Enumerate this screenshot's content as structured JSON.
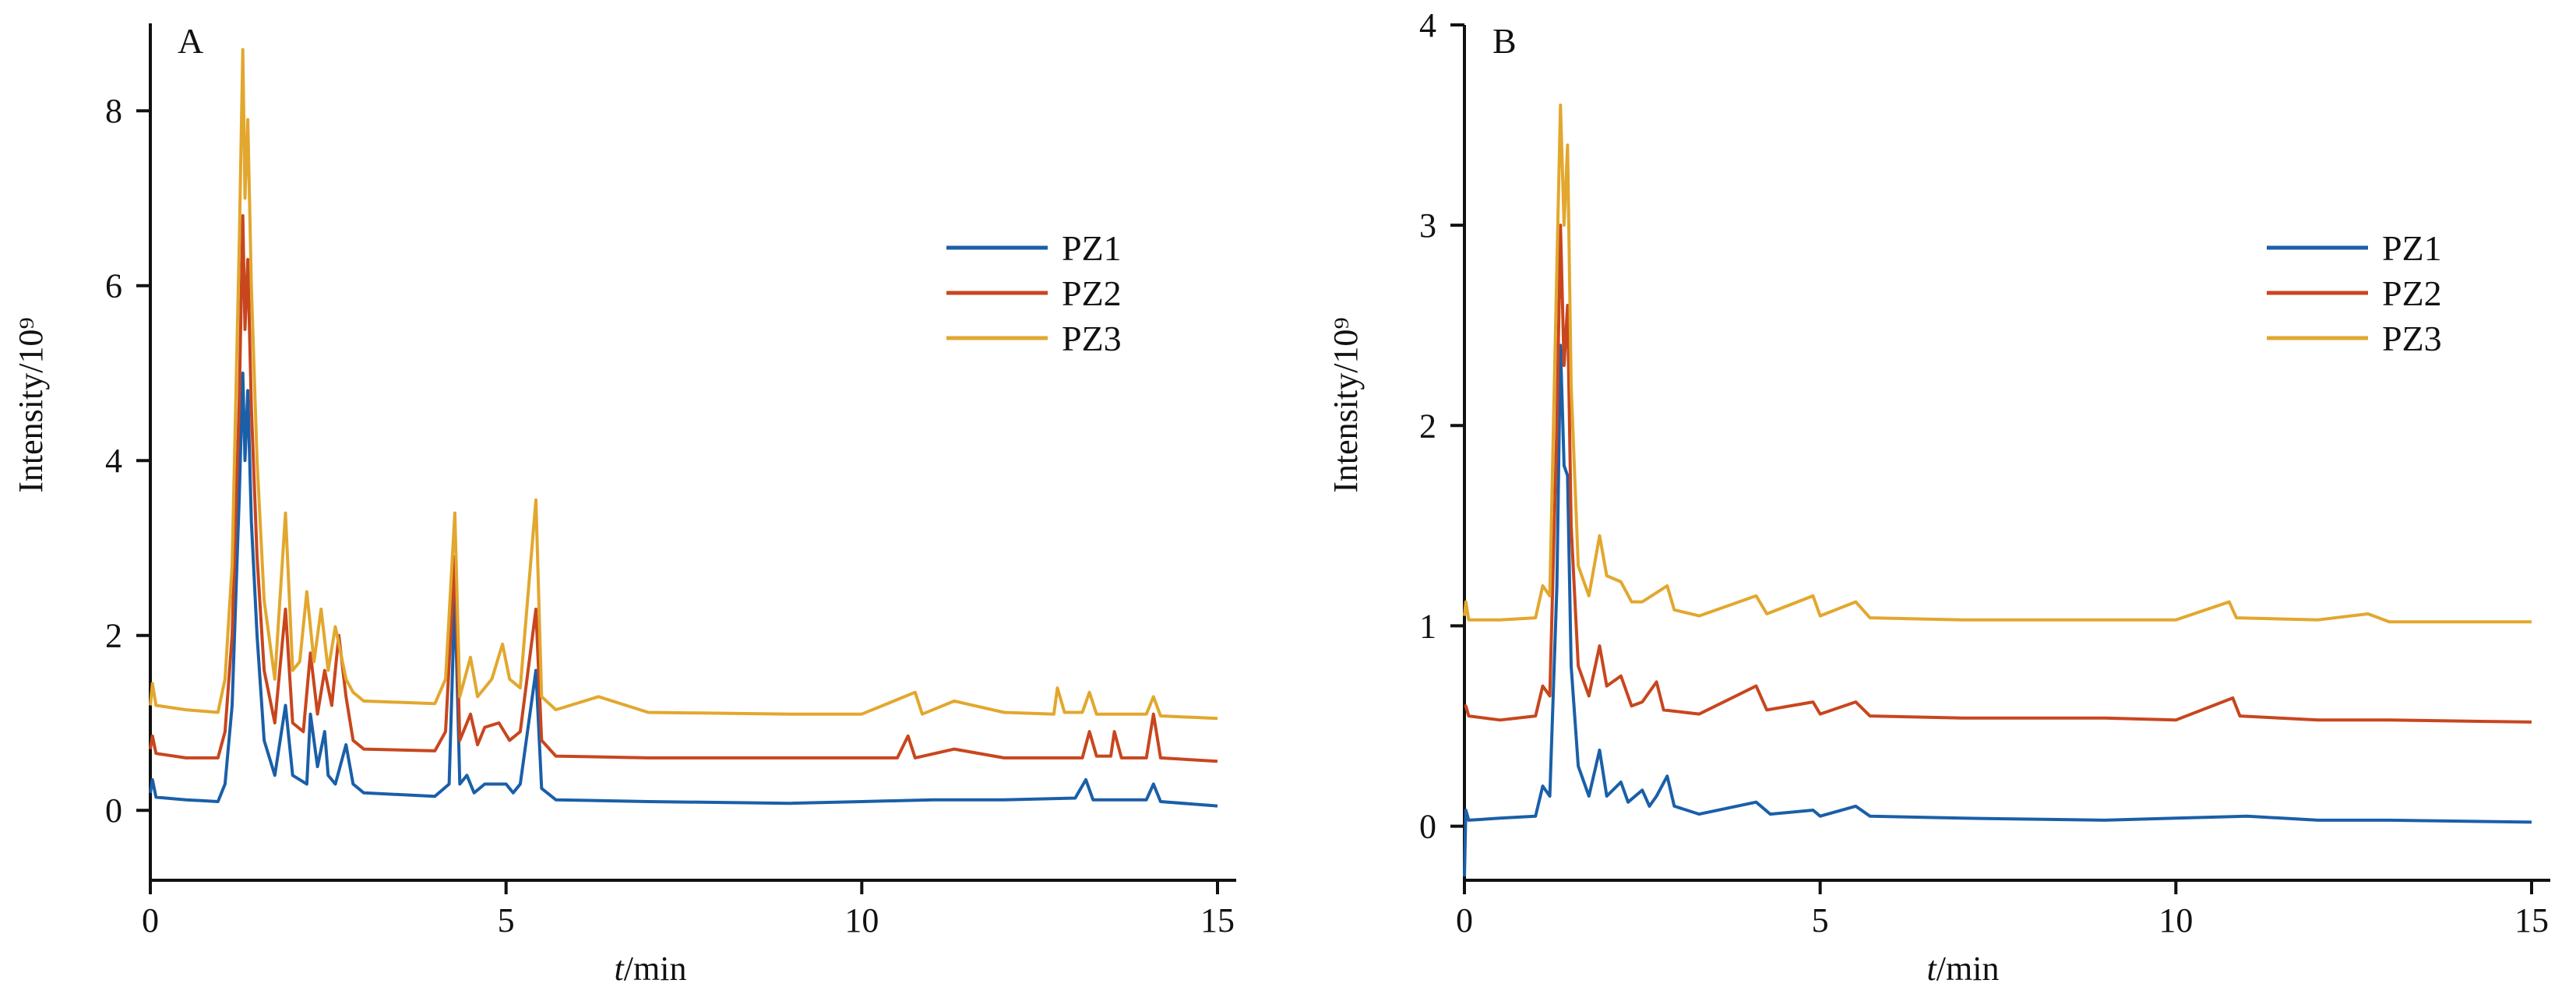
{
  "chart_data": [
    {
      "type": "line",
      "panel_label": "A",
      "xlabel_italic": "t",
      "xlabel_rest": "/min",
      "ylabel": "Intensity/10⁹",
      "xlim": [
        0,
        15
      ],
      "ylim": [
        -0.8,
        9.0
      ],
      "xticks": [
        0,
        5,
        10,
        15
      ],
      "yticks": [
        0,
        2,
        4,
        6,
        8
      ],
      "legend_position": "upper-right",
      "series": [
        {
          "name": "PZ1",
          "color": "#1a5fa8",
          "points": [
            [
              0,
              0.2
            ],
            [
              0.03,
              0.35
            ],
            [
              0.08,
              0.15
            ],
            [
              0.5,
              0.12
            ],
            [
              0.95,
              0.1
            ],
            [
              1.05,
              0.3
            ],
            [
              1.15,
              1.2
            ],
            [
              1.25,
              3.6
            ],
            [
              1.3,
              5.0
            ],
            [
              1.33,
              4.0
            ],
            [
              1.37,
              4.8
            ],
            [
              1.42,
              3.3
            ],
            [
              1.5,
              2.0
            ],
            [
              1.6,
              0.8
            ],
            [
              1.75,
              0.4
            ],
            [
              1.9,
              1.2
            ],
            [
              2.0,
              0.4
            ],
            [
              2.2,
              0.3
            ],
            [
              2.25,
              1.1
            ],
            [
              2.35,
              0.5
            ],
            [
              2.45,
              0.9
            ],
            [
              2.5,
              0.4
            ],
            [
              2.6,
              0.3
            ],
            [
              2.75,
              0.75
            ],
            [
              2.85,
              0.3
            ],
            [
              3.0,
              0.2
            ],
            [
              4.0,
              0.16
            ],
            [
              4.2,
              0.3
            ],
            [
              4.28,
              2.5
            ],
            [
              4.35,
              0.3
            ],
            [
              4.45,
              0.4
            ],
            [
              4.55,
              0.2
            ],
            [
              4.7,
              0.3
            ],
            [
              5.0,
              0.3
            ],
            [
              5.1,
              0.2
            ],
            [
              5.2,
              0.3
            ],
            [
              5.42,
              1.6
            ],
            [
              5.5,
              0.25
            ],
            [
              5.7,
              0.12
            ],
            [
              7,
              0.1
            ],
            [
              9,
              0.08
            ],
            [
              10,
              0.1
            ],
            [
              11,
              0.12
            ],
            [
              12,
              0.12
            ],
            [
              13.0,
              0.14
            ],
            [
              13.15,
              0.35
            ],
            [
              13.25,
              0.12
            ],
            [
              14.0,
              0.12
            ],
            [
              14.1,
              0.3
            ],
            [
              14.2,
              0.1
            ],
            [
              15,
              0.05
            ]
          ]
        },
        {
          "name": "PZ2",
          "color": "#c8461e",
          "points": [
            [
              0,
              0.7
            ],
            [
              0.03,
              0.85
            ],
            [
              0.08,
              0.65
            ],
            [
              0.5,
              0.6
            ],
            [
              0.95,
              0.6
            ],
            [
              1.05,
              0.9
            ],
            [
              1.15,
              2.0
            ],
            [
              1.25,
              4.7
            ],
            [
              1.3,
              6.8
            ],
            [
              1.33,
              5.5
            ],
            [
              1.37,
              6.3
            ],
            [
              1.42,
              4.6
            ],
            [
              1.5,
              2.9
            ],
            [
              1.6,
              1.6
            ],
            [
              1.75,
              1.0
            ],
            [
              1.9,
              2.3
            ],
            [
              2.0,
              1.0
            ],
            [
              2.15,
              0.9
            ],
            [
              2.25,
              1.8
            ],
            [
              2.35,
              1.1
            ],
            [
              2.45,
              1.6
            ],
            [
              2.55,
              1.2
            ],
            [
              2.65,
              2.0
            ],
            [
              2.75,
              1.3
            ],
            [
              2.85,
              0.8
            ],
            [
              3.0,
              0.7
            ],
            [
              4.0,
              0.68
            ],
            [
              4.15,
              0.9
            ],
            [
              4.28,
              2.9
            ],
            [
              4.35,
              0.8
            ],
            [
              4.5,
              1.1
            ],
            [
              4.6,
              0.75
            ],
            [
              4.7,
              0.95
            ],
            [
              4.9,
              1.0
            ],
            [
              5.05,
              0.8
            ],
            [
              5.2,
              0.9
            ],
            [
              5.42,
              2.3
            ],
            [
              5.5,
              0.8
            ],
            [
              5.7,
              0.62
            ],
            [
              7,
              0.6
            ],
            [
              9,
              0.6
            ],
            [
              10.5,
              0.6
            ],
            [
              10.65,
              0.85
            ],
            [
              10.75,
              0.6
            ],
            [
              11.3,
              0.7
            ],
            [
              12,
              0.6
            ],
            [
              13.1,
              0.6
            ],
            [
              13.2,
              0.9
            ],
            [
              13.3,
              0.62
            ],
            [
              13.5,
              0.62
            ],
            [
              13.55,
              0.9
            ],
            [
              13.65,
              0.6
            ],
            [
              14.0,
              0.6
            ],
            [
              14.1,
              1.1
            ],
            [
              14.2,
              0.6
            ],
            [
              15,
              0.56
            ]
          ]
        },
        {
          "name": "PZ3",
          "color": "#e2a72e",
          "points": [
            [
              0,
              1.2
            ],
            [
              0.03,
              1.45
            ],
            [
              0.08,
              1.2
            ],
            [
              0.5,
              1.15
            ],
            [
              0.95,
              1.12
            ],
            [
              1.05,
              1.5
            ],
            [
              1.15,
              2.8
            ],
            [
              1.25,
              6.5
            ],
            [
              1.3,
              8.7
            ],
            [
              1.33,
              7.0
            ],
            [
              1.37,
              7.9
            ],
            [
              1.42,
              6.0
            ],
            [
              1.5,
              4.0
            ],
            [
              1.6,
              2.4
            ],
            [
              1.75,
              1.5
            ],
            [
              1.9,
              3.4
            ],
            [
              2.0,
              1.6
            ],
            [
              2.1,
              1.7
            ],
            [
              2.2,
              2.5
            ],
            [
              2.3,
              1.7
            ],
            [
              2.4,
              2.3
            ],
            [
              2.5,
              1.6
            ],
            [
              2.6,
              2.1
            ],
            [
              2.75,
              1.5
            ],
            [
              2.85,
              1.35
            ],
            [
              3.0,
              1.25
            ],
            [
              4.0,
              1.22
            ],
            [
              4.15,
              1.5
            ],
            [
              4.28,
              3.4
            ],
            [
              4.35,
              1.3
            ],
            [
              4.5,
              1.75
            ],
            [
              4.6,
              1.3
            ],
            [
              4.8,
              1.5
            ],
            [
              4.95,
              1.9
            ],
            [
              5.05,
              1.5
            ],
            [
              5.2,
              1.4
            ],
            [
              5.42,
              3.55
            ],
            [
              5.5,
              1.3
            ],
            [
              5.7,
              1.15
            ],
            [
              6.3,
              1.3
            ],
            [
              7,
              1.12
            ],
            [
              9,
              1.1
            ],
            [
              10,
              1.1
            ],
            [
              10.75,
              1.35
            ],
            [
              10.85,
              1.1
            ],
            [
              11.3,
              1.25
            ],
            [
              12,
              1.12
            ],
            [
              12.7,
              1.1
            ],
            [
              12.75,
              1.4
            ],
            [
              12.85,
              1.12
            ],
            [
              13.1,
              1.12
            ],
            [
              13.2,
              1.35
            ],
            [
              13.3,
              1.1
            ],
            [
              14.0,
              1.1
            ],
            [
              14.1,
              1.3
            ],
            [
              14.2,
              1.08
            ],
            [
              15,
              1.05
            ]
          ]
        }
      ]
    },
    {
      "type": "line",
      "panel_label": "B",
      "xlabel_italic": "t",
      "xlabel_rest": "/min",
      "ylabel": "Intensity/10⁹",
      "xlim": [
        0,
        15
      ],
      "ylim": [
        -0.27,
        4.0
      ],
      "xticks": [
        0,
        5,
        10,
        15
      ],
      "yticks": [
        0,
        1,
        2,
        3,
        4
      ],
      "legend_position": "upper-right",
      "series": [
        {
          "name": "PZ1",
          "color": "#1a5fa8",
          "points": [
            [
              0,
              -0.25
            ],
            [
              0.02,
              0.08
            ],
            [
              0.06,
              0.03
            ],
            [
              0.5,
              0.04
            ],
            [
              1.0,
              0.05
            ],
            [
              1.1,
              0.2
            ],
            [
              1.2,
              0.15
            ],
            [
              1.3,
              1.2
            ],
            [
              1.35,
              2.4
            ],
            [
              1.4,
              1.8
            ],
            [
              1.45,
              1.75
            ],
            [
              1.5,
              0.8
            ],
            [
              1.6,
              0.3
            ],
            [
              1.75,
              0.15
            ],
            [
              1.9,
              0.38
            ],
            [
              2.0,
              0.15
            ],
            [
              2.2,
              0.22
            ],
            [
              2.3,
              0.12
            ],
            [
              2.5,
              0.18
            ],
            [
              2.6,
              0.1
            ],
            [
              2.7,
              0.15
            ],
            [
              2.85,
              0.25
            ],
            [
              2.95,
              0.1
            ],
            [
              3.3,
              0.06
            ],
            [
              4.1,
              0.12
            ],
            [
              4.3,
              0.06
            ],
            [
              4.9,
              0.08
            ],
            [
              5.0,
              0.05
            ],
            [
              5.5,
              0.1
            ],
            [
              5.7,
              0.05
            ],
            [
              7,
              0.04
            ],
            [
              9,
              0.03
            ],
            [
              10,
              0.04
            ],
            [
              11,
              0.05
            ],
            [
              12,
              0.03
            ],
            [
              13,
              0.03
            ],
            [
              15,
              0.02
            ]
          ]
        },
        {
          "name": "PZ2",
          "color": "#c8461e",
          "points": [
            [
              0,
              0.6
            ],
            [
              0.02,
              0.6
            ],
            [
              0.06,
              0.55
            ],
            [
              0.5,
              0.53
            ],
            [
              1.0,
              0.55
            ],
            [
              1.1,
              0.7
            ],
            [
              1.2,
              0.65
            ],
            [
              1.3,
              2.0
            ],
            [
              1.35,
              3.0
            ],
            [
              1.4,
              2.3
            ],
            [
              1.45,
              2.6
            ],
            [
              1.5,
              1.5
            ],
            [
              1.6,
              0.8
            ],
            [
              1.75,
              0.65
            ],
            [
              1.9,
              0.9
            ],
            [
              2.0,
              0.7
            ],
            [
              2.2,
              0.75
            ],
            [
              2.35,
              0.6
            ],
            [
              2.5,
              0.62
            ],
            [
              2.7,
              0.72
            ],
            [
              2.8,
              0.58
            ],
            [
              3.3,
              0.56
            ],
            [
              4.1,
              0.7
            ],
            [
              4.25,
              0.58
            ],
            [
              4.9,
              0.62
            ],
            [
              5.0,
              0.56
            ],
            [
              5.5,
              0.62
            ],
            [
              5.7,
              0.55
            ],
            [
              7,
              0.54
            ],
            [
              9,
              0.54
            ],
            [
              10,
              0.53
            ],
            [
              10.8,
              0.64
            ],
            [
              10.9,
              0.55
            ],
            [
              12,
              0.53
            ],
            [
              13,
              0.53
            ],
            [
              15,
              0.52
            ]
          ]
        },
        {
          "name": "PZ3",
          "color": "#e2a72e",
          "points": [
            [
              0,
              1.05
            ],
            [
              0.02,
              1.12
            ],
            [
              0.06,
              1.03
            ],
            [
              0.5,
              1.03
            ],
            [
              1.0,
              1.04
            ],
            [
              1.1,
              1.2
            ],
            [
              1.2,
              1.15
            ],
            [
              1.3,
              2.8
            ],
            [
              1.35,
              3.6
            ],
            [
              1.4,
              3.0
            ],
            [
              1.45,
              3.4
            ],
            [
              1.5,
              2.2
            ],
            [
              1.6,
              1.3
            ],
            [
              1.75,
              1.15
            ],
            [
              1.9,
              1.45
            ],
            [
              2.0,
              1.25
            ],
            [
              2.2,
              1.22
            ],
            [
              2.35,
              1.12
            ],
            [
              2.5,
              1.12
            ],
            [
              2.85,
              1.2
            ],
            [
              2.95,
              1.08
            ],
            [
              3.3,
              1.05
            ],
            [
              4.1,
              1.15
            ],
            [
              4.25,
              1.06
            ],
            [
              4.9,
              1.15
            ],
            [
              5.0,
              1.05
            ],
            [
              5.5,
              1.12
            ],
            [
              5.7,
              1.04
            ],
            [
              7,
              1.03
            ],
            [
              9,
              1.03
            ],
            [
              10,
              1.03
            ],
            [
              10.75,
              1.12
            ],
            [
              10.85,
              1.04
            ],
            [
              12,
              1.03
            ],
            [
              12.7,
              1.06
            ],
            [
              13,
              1.02
            ],
            [
              15,
              1.02
            ]
          ]
        }
      ]
    }
  ]
}
